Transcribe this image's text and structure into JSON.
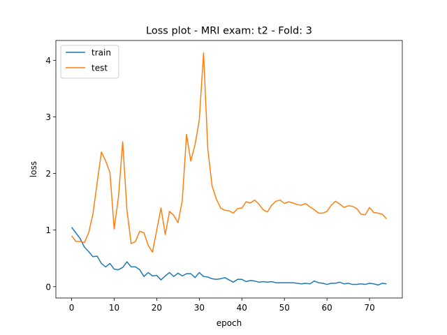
{
  "chart_data": {
    "type": "line",
    "title": "Loss plot - MRI exam: t2 - Fold: 3",
    "xlabel": "epoch",
    "ylabel": "loss",
    "xlim": [
      -3.7,
      77.7
    ],
    "ylim": [
      -0.2,
      4.35
    ],
    "xticks": [
      0,
      10,
      20,
      30,
      40,
      50,
      60,
      70
    ],
    "yticks": [
      0,
      1,
      2,
      3,
      4
    ],
    "grid": false,
    "legend_position": "top-left",
    "series": [
      {
        "name": "train",
        "color": "#1f77b4",
        "x": [
          0,
          1,
          2,
          3,
          4,
          5,
          6,
          7,
          8,
          9,
          10,
          11,
          12,
          13,
          14,
          15,
          16,
          17,
          18,
          19,
          20,
          21,
          22,
          23,
          24,
          25,
          26,
          27,
          28,
          29,
          30,
          31,
          32,
          33,
          34,
          35,
          36,
          37,
          38,
          39,
          40,
          41,
          42,
          43,
          44,
          45,
          46,
          47,
          48,
          49,
          50,
          51,
          52,
          53,
          54,
          55,
          56,
          57,
          58,
          59,
          60,
          61,
          62,
          63,
          64,
          65,
          66,
          67,
          68,
          69,
          70,
          71,
          72,
          73,
          74
        ],
        "values": [
          1.05,
          0.95,
          0.85,
          0.7,
          0.62,
          0.53,
          0.54,
          0.41,
          0.35,
          0.41,
          0.31,
          0.3,
          0.34,
          0.44,
          0.35,
          0.35,
          0.3,
          0.18,
          0.25,
          0.19,
          0.2,
          0.12,
          0.19,
          0.25,
          0.18,
          0.24,
          0.19,
          0.23,
          0.23,
          0.16,
          0.25,
          0.18,
          0.17,
          0.14,
          0.13,
          0.14,
          0.16,
          0.12,
          0.08,
          0.13,
          0.13,
          0.09,
          0.11,
          0.1,
          0.08,
          0.09,
          0.08,
          0.09,
          0.07,
          0.07,
          0.07,
          0.07,
          0.07,
          0.06,
          0.05,
          0.06,
          0.05,
          0.1,
          0.07,
          0.06,
          0.04,
          0.06,
          0.06,
          0.08,
          0.05,
          0.06,
          0.04,
          0.04,
          0.05,
          0.04,
          0.06,
          0.05,
          0.03,
          0.06,
          0.05
        ]
      },
      {
        "name": "test",
        "color": "#ff7f0e",
        "x": [
          0,
          1,
          2,
          3,
          4,
          5,
          6,
          7,
          8,
          9,
          10,
          11,
          12,
          13,
          14,
          15,
          16,
          17,
          18,
          19,
          20,
          21,
          22,
          23,
          24,
          25,
          26,
          27,
          28,
          29,
          30,
          31,
          32,
          33,
          34,
          35,
          36,
          37,
          38,
          39,
          40,
          41,
          42,
          43,
          44,
          45,
          46,
          47,
          48,
          49,
          50,
          51,
          52,
          53,
          54,
          55,
          56,
          57,
          58,
          59,
          60,
          61,
          62,
          63,
          64,
          65,
          66,
          67,
          68,
          69,
          70,
          71,
          72,
          73,
          74
        ],
        "values": [
          0.9,
          0.8,
          0.8,
          0.78,
          0.95,
          1.28,
          1.84,
          2.38,
          2.22,
          2.02,
          1.02,
          1.58,
          2.56,
          1.35,
          0.76,
          0.8,
          0.98,
          0.95,
          0.73,
          0.61,
          1.0,
          1.39,
          0.92,
          1.33,
          1.26,
          1.13,
          1.52,
          2.69,
          2.22,
          2.51,
          2.95,
          4.13,
          2.43,
          1.78,
          1.55,
          1.39,
          1.35,
          1.34,
          1.3,
          1.38,
          1.39,
          1.5,
          1.48,
          1.53,
          1.46,
          1.36,
          1.32,
          1.44,
          1.51,
          1.53,
          1.47,
          1.5,
          1.48,
          1.45,
          1.44,
          1.47,
          1.41,
          1.36,
          1.3,
          1.3,
          1.33,
          1.44,
          1.51,
          1.46,
          1.4,
          1.43,
          1.42,
          1.38,
          1.28,
          1.27,
          1.4,
          1.31,
          1.3,
          1.28,
          1.2
        ]
      }
    ]
  }
}
